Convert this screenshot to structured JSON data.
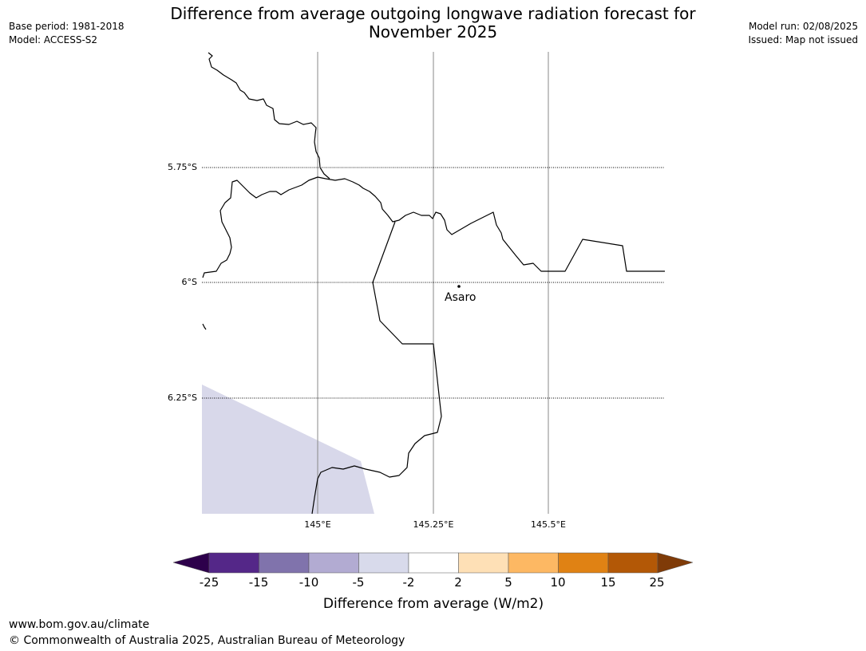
{
  "header": {
    "title_line1": "Difference from average outgoing longwave radiation forecast for",
    "title_line2": "November 2025",
    "base_period": "Base period: 1981-2018",
    "model": "Model: ACCESS-S2",
    "model_run": "Model run: 02/08/2025",
    "issued": "Issued: Map not issued"
  },
  "map": {
    "lat_labels": [
      "5.75°S",
      "6°S",
      "6.25°S"
    ],
    "lon_labels": [
      "145°E",
      "145.25°E",
      "145.5°E"
    ],
    "place": "Asaro",
    "colors": {
      "coast": "#000000",
      "parallel": "#000000",
      "meridian": "#888888",
      "anomaly_fill": "#d8d8ea"
    }
  },
  "legend": {
    "title": "Difference from average (W/m2)",
    "ticks": [
      "-25",
      "-15",
      "-10",
      "-5",
      "-2",
      "2",
      "5",
      "10",
      "15",
      "25"
    ],
    "colors": [
      "#2d004b",
      "#542788",
      "#8073ac",
      "#b2abd2",
      "#d8daeb",
      "#ffffff",
      "#fee0b6",
      "#fdb863",
      "#e08214",
      "#b35806",
      "#7f3b08"
    ]
  },
  "footer": {
    "url": "www.bom.gov.au/climate",
    "copyright": "© Commonwealth of Australia 2025, Australian Bureau of Meteorology"
  }
}
